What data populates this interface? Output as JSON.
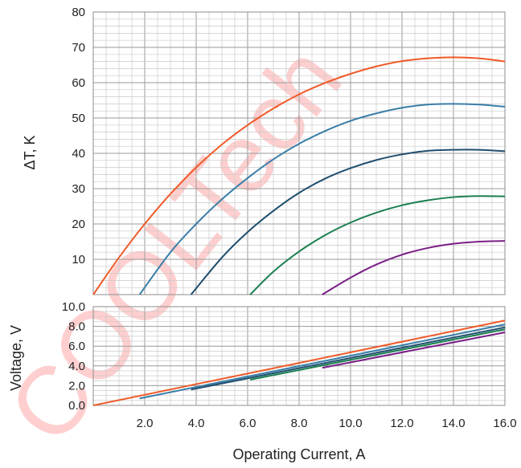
{
  "watermark": "COOLTech",
  "chart_data": [
    {
      "type": "line",
      "title": "",
      "xlabel": "",
      "ylabel": "ΔT, K",
      "xlim": [
        0,
        16
      ],
      "ylim": [
        0,
        80
      ],
      "grid": true,
      "x_ticks": [],
      "y_ticks": [
        "10",
        "20",
        "30",
        "40",
        "50",
        "60",
        "70",
        "80"
      ],
      "series": [
        {
          "color": "#f05a28",
          "x": [
            0,
            1,
            2,
            3,
            4,
            5,
            6,
            7,
            8,
            9,
            10,
            11,
            12,
            13,
            14,
            15,
            16
          ],
          "values": [
            0,
            10.5,
            20,
            28.5,
            36,
            42.5,
            48,
            52.7,
            56.7,
            59.9,
            62.5,
            64.6,
            66.1,
            66.9,
            67.2,
            66.9,
            66
          ]
        },
        {
          "color": "#3a7ea8",
          "x": [
            1.8,
            3,
            4,
            5,
            6,
            7,
            8,
            9,
            10,
            11,
            12,
            13,
            14,
            15,
            16
          ],
          "values": [
            0,
            12,
            20,
            27,
            33,
            38.3,
            42.7,
            46.3,
            49.2,
            51.3,
            52.9,
            53.8,
            54,
            53.8,
            53.2
          ]
        },
        {
          "color": "#1f4e6e",
          "x": [
            3.8,
            5,
            6,
            7,
            8,
            9,
            10,
            11,
            12,
            13,
            14,
            15,
            16
          ],
          "values": [
            0,
            10.5,
            17.7,
            23.7,
            28.8,
            32.8,
            35.8,
            38.1,
            39.7,
            40.7,
            41,
            41,
            40.6
          ]
        },
        {
          "color": "#1a8050",
          "x": [
            6.1,
            7,
            8,
            9,
            10,
            11,
            12,
            13,
            14,
            15,
            16
          ],
          "values": [
            0,
            6.5,
            12.2,
            16.8,
            20.4,
            23.2,
            25.3,
            26.7,
            27.6,
            27.9,
            27.8
          ]
        },
        {
          "color": "#7a1f86",
          "x": [
            8.9,
            10,
            11,
            12,
            13,
            14,
            15,
            16
          ],
          "values": [
            0,
            4.8,
            8.5,
            11.3,
            13.2,
            14.4,
            15,
            15.2
          ]
        }
      ]
    },
    {
      "type": "line",
      "title": "",
      "xlabel": "Operating Current, A",
      "ylabel": "Voltage, V",
      "xlim": [
        0,
        16
      ],
      "ylim": [
        0,
        10
      ],
      "grid": true,
      "x_ticks": [
        "2.0",
        "4.0",
        "6.0",
        "8.0",
        "10.0",
        "12.0",
        "14.0",
        "16.0"
      ],
      "y_ticks": [
        "0.0",
        "2.0",
        "4.0",
        "6.0",
        "8.0",
        "10.0"
      ],
      "series": [
        {
          "color": "#f05a28",
          "x": [
            0,
            16
          ],
          "values": [
            0,
            8.6
          ]
        },
        {
          "color": "#3a7ea8",
          "x": [
            1.8,
            16
          ],
          "values": [
            0.7,
            8.2
          ]
        },
        {
          "color": "#1f4e6e",
          "x": [
            3.8,
            16
          ],
          "values": [
            1.6,
            7.9
          ]
        },
        {
          "color": "#1a8050",
          "x": [
            6.1,
            16
          ],
          "values": [
            2.6,
            7.7
          ]
        },
        {
          "color": "#7a1f86",
          "x": [
            8.9,
            16
          ],
          "values": [
            3.8,
            7.4
          ]
        }
      ]
    }
  ]
}
